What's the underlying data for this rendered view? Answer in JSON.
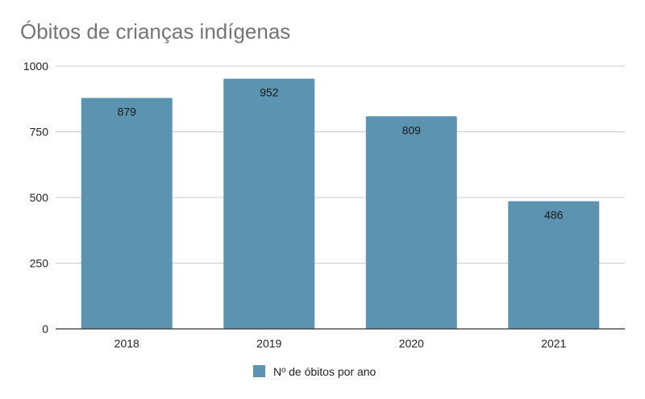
{
  "chart_data": {
    "type": "bar",
    "title": "Óbitos de crianças indígenas",
    "categories": [
      "2018",
      "2019",
      "2020",
      "2021"
    ],
    "series": [
      {
        "name": "Nº de óbitos por ano",
        "values": [
          879,
          952,
          809,
          486
        ],
        "color": "#5b93b0"
      }
    ],
    "data_labels": [
      "879",
      "952",
      "809",
      "486"
    ],
    "y_ticks": [
      0,
      250,
      500,
      750,
      1000
    ],
    "y_tick_labels": [
      "0",
      "250",
      "500",
      "750",
      "1000"
    ],
    "ylim": [
      0,
      1000
    ],
    "xlabel": "",
    "ylabel": "",
    "grid": true,
    "legend_position": "bottom",
    "colors": {
      "bar": "#5b93b0",
      "grid": "#cccccc",
      "axis": "#333333",
      "title": "#757575"
    }
  }
}
